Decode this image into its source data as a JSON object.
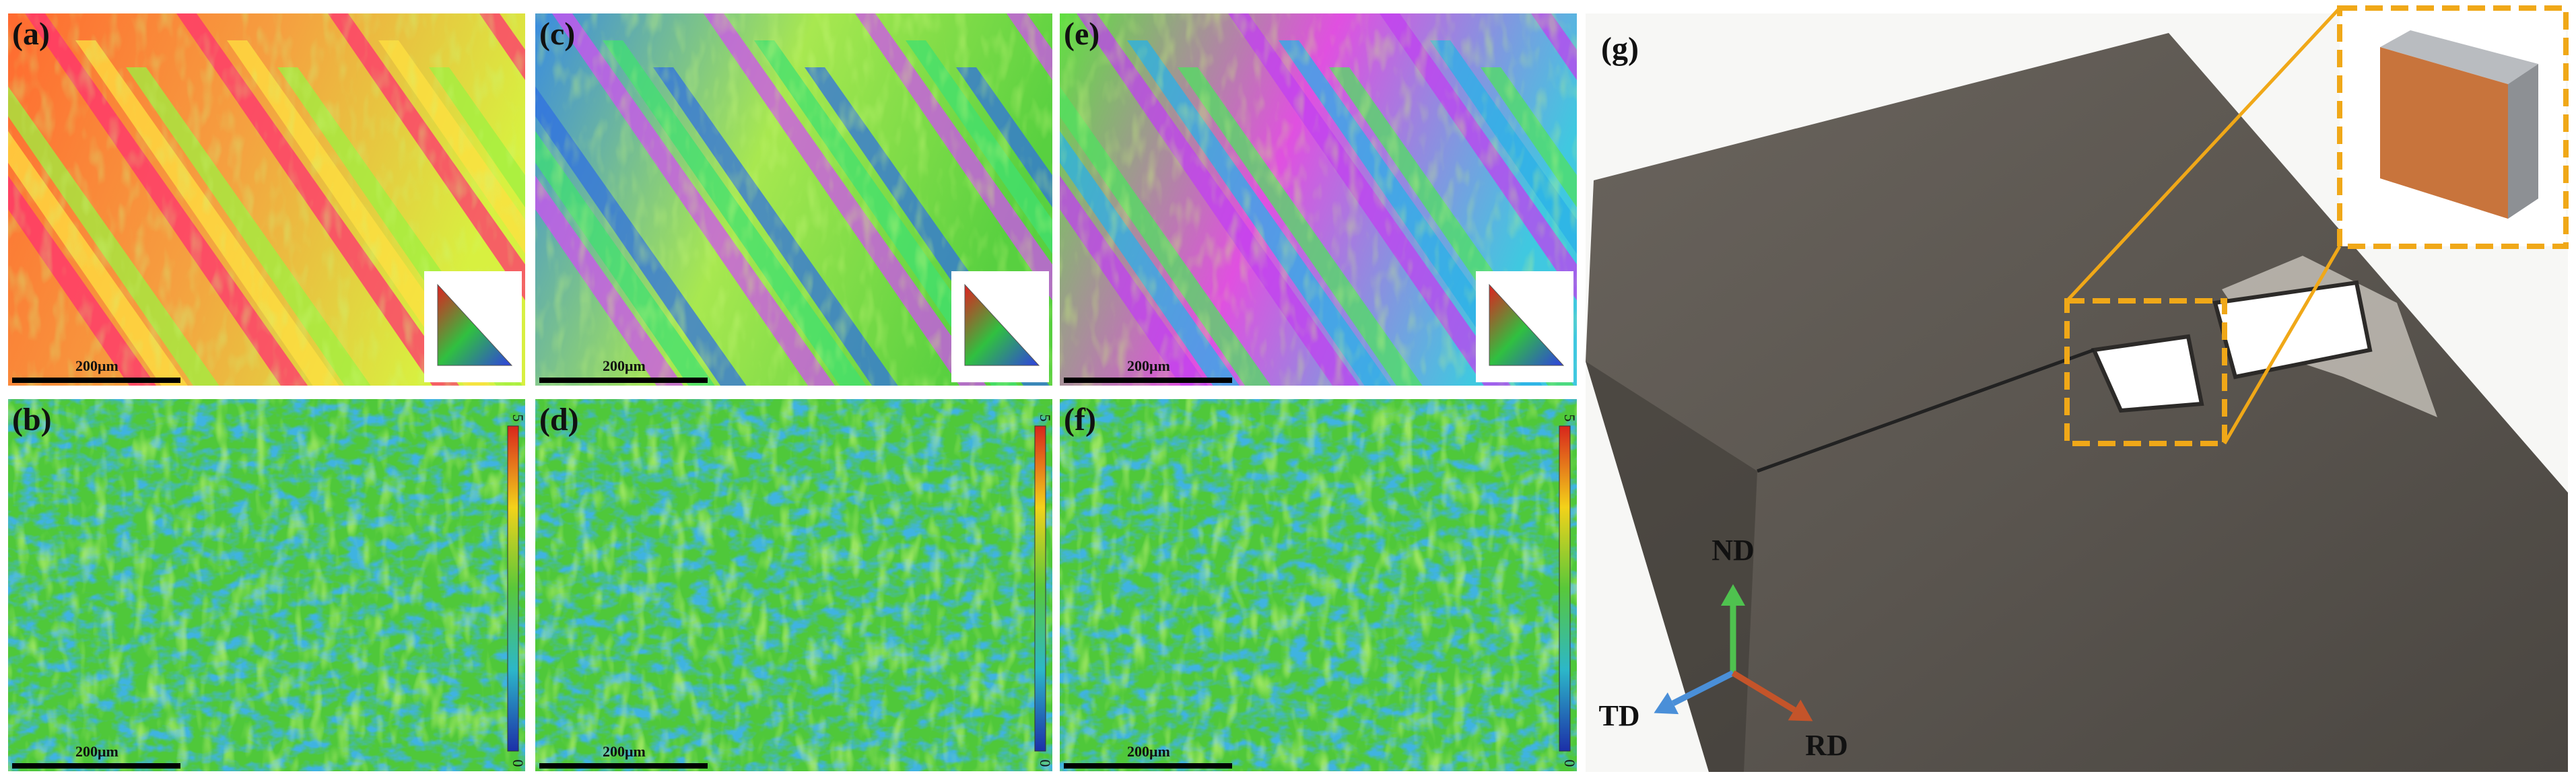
{
  "panels": [
    {
      "label": "(a)",
      "scale_bar": "200μm"
    },
    {
      "label": "(b)",
      "scale_bar": "200μm"
    },
    {
      "label": "(c)",
      "scale_bar": "200μm"
    },
    {
      "label": "(d)",
      "scale_bar": "200μm"
    },
    {
      "label": "(e)",
      "scale_bar": "200μm"
    },
    {
      "label": "(f)",
      "scale_bar": "200μm"
    }
  ],
  "colorbar": {
    "min": 0,
    "max": 5
  },
  "photo": {
    "label": "(g)",
    "axes": [
      "ND",
      "TD",
      "RD"
    ]
  }
}
